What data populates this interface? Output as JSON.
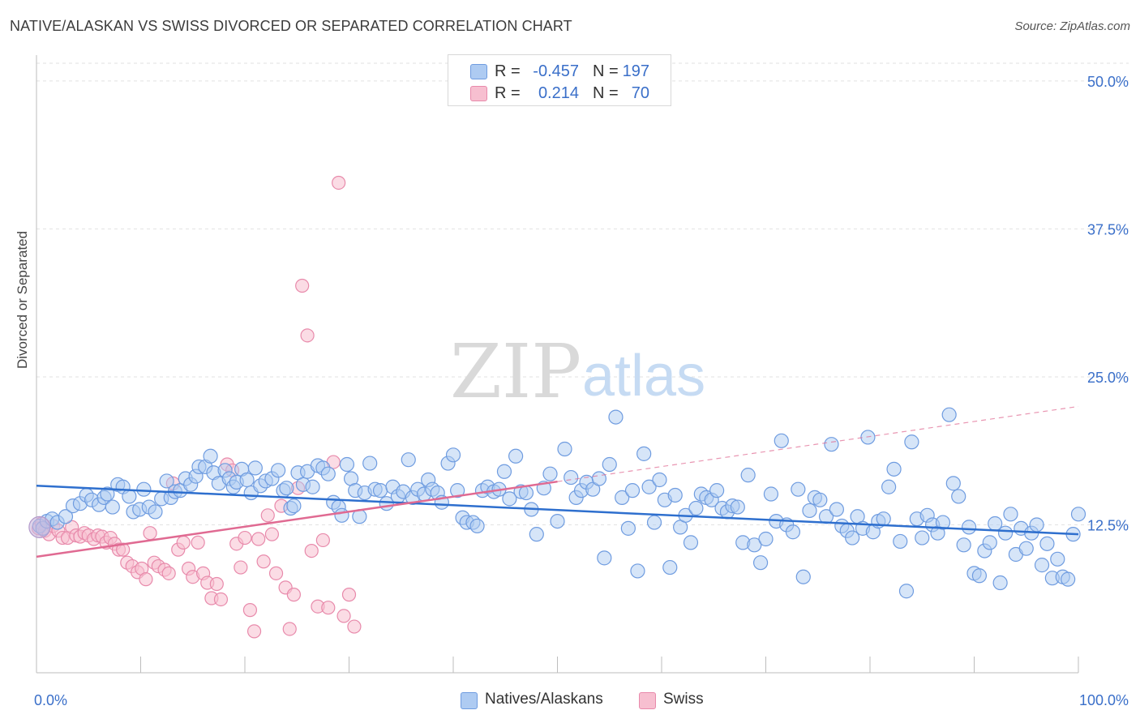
{
  "header": {
    "title": "NATIVE/ALASKAN VS SWISS DIVORCED OR SEPARATED CORRELATION CHART",
    "source": "Source: ZipAtlas.com"
  },
  "legend": {
    "rows": [
      {
        "r_label": "R =",
        "r_value": "-0.457",
        "n_label": "N =",
        "n_value": "197"
      },
      {
        "r_label": "R =",
        "r_value": "0.214",
        "n_label": "N =",
        "n_value": "70"
      }
    ]
  },
  "bottom_legend": [
    "Natives/Alaskans",
    "Swiss"
  ],
  "watermark": {
    "zip": "ZIP",
    "atlas": "atlas"
  },
  "colors": {
    "blue_fill": "#aecbf2",
    "blue_stroke": "#6f9ce0",
    "blue_line": "#2e6fce",
    "pink_fill": "#f7bfd0",
    "pink_stroke": "#e88aab",
    "pink_line": "#e06a92",
    "axis_text": "#3a6fc9",
    "grid": "#e2e2e2"
  },
  "chart_data": {
    "type": "scatter",
    "title": "NATIVE/ALASKAN VS SWISS DIVORCED OR SEPARATED CORRELATION CHART",
    "xlabel": "",
    "ylabel": "Divorced or Separated",
    "x_tick_labels": [
      "0.0%",
      "100.0%"
    ],
    "y_tick_labels": [
      "12.5%",
      "25.0%",
      "37.5%",
      "50.0%"
    ],
    "y_ticks": [
      12.5,
      25.0,
      37.5,
      50.0
    ],
    "xlim": [
      0,
      100
    ],
    "ylim": [
      0,
      51.5
    ],
    "grid": true,
    "legend_position": "top-center",
    "series": [
      {
        "name": "Natives/Alaskans",
        "r": -0.457,
        "n": 197,
        "trend": {
          "x": [
            0,
            100
          ],
          "y": [
            15.8,
            11.7
          ],
          "dashed_after": null
        },
        "points": [
          [
            0.3,
            12.4
          ],
          [
            0.6,
            12.2
          ],
          [
            1.0,
            12.8
          ],
          [
            1.5,
            13.0
          ],
          [
            2.0,
            12.7
          ],
          [
            2.8,
            13.2
          ],
          [
            3.5,
            14.1
          ],
          [
            4.2,
            14.3
          ],
          [
            4.8,
            15.0
          ],
          [
            5.3,
            14.6
          ],
          [
            6.0,
            14.2
          ],
          [
            6.5,
            14.8
          ],
          [
            6.8,
            15.1
          ],
          [
            7.3,
            14.0
          ],
          [
            7.8,
            15.9
          ],
          [
            8.3,
            15.7
          ],
          [
            8.9,
            14.9
          ],
          [
            9.3,
            13.6
          ],
          [
            9.9,
            13.8
          ],
          [
            10.3,
            15.5
          ],
          [
            10.8,
            14.0
          ],
          [
            11.4,
            13.6
          ],
          [
            12.0,
            14.7
          ],
          [
            12.5,
            16.2
          ],
          [
            12.9,
            14.8
          ],
          [
            13.3,
            15.3
          ],
          [
            13.8,
            15.4
          ],
          [
            14.3,
            16.4
          ],
          [
            14.8,
            15.9
          ],
          [
            15.3,
            16.6
          ],
          [
            15.6,
            17.4
          ],
          [
            16.2,
            17.4
          ],
          [
            16.7,
            18.3
          ],
          [
            17.0,
            16.9
          ],
          [
            17.5,
            16.0
          ],
          [
            18.1,
            17.1
          ],
          [
            18.5,
            16.4
          ],
          [
            18.9,
            15.7
          ],
          [
            19.2,
            16.1
          ],
          [
            19.7,
            17.2
          ],
          [
            20.2,
            16.3
          ],
          [
            20.6,
            15.2
          ],
          [
            21.0,
            17.3
          ],
          [
            21.5,
            15.8
          ],
          [
            22.0,
            16.2
          ],
          [
            22.6,
            16.4
          ],
          [
            23.2,
            17.1
          ],
          [
            23.7,
            15.4
          ],
          [
            24.0,
            15.6
          ],
          [
            24.4,
            13.9
          ],
          [
            24.7,
            14.1
          ],
          [
            25.1,
            16.9
          ],
          [
            25.6,
            15.9
          ],
          [
            26.0,
            17.0
          ],
          [
            26.5,
            15.7
          ],
          [
            27.0,
            17.5
          ],
          [
            27.5,
            17.3
          ],
          [
            28.0,
            16.8
          ],
          [
            28.5,
            14.4
          ],
          [
            29.0,
            14.0
          ],
          [
            29.3,
            13.3
          ],
          [
            29.8,
            17.6
          ],
          [
            30.2,
            16.4
          ],
          [
            30.6,
            15.4
          ],
          [
            31.0,
            13.2
          ],
          [
            31.5,
            15.2
          ],
          [
            32.0,
            17.7
          ],
          [
            32.5,
            15.5
          ],
          [
            33.0,
            15.4
          ],
          [
            33.6,
            14.3
          ],
          [
            34.2,
            15.7
          ],
          [
            34.7,
            14.9
          ],
          [
            35.2,
            15.3
          ],
          [
            35.7,
            18.0
          ],
          [
            36.1,
            14.8
          ],
          [
            36.6,
            15.5
          ],
          [
            37.2,
            15.1
          ],
          [
            37.6,
            16.3
          ],
          [
            38.0,
            15.5
          ],
          [
            38.5,
            15.2
          ],
          [
            38.9,
            14.4
          ],
          [
            39.5,
            17.7
          ],
          [
            40.0,
            18.4
          ],
          [
            40.4,
            15.4
          ],
          [
            40.9,
            13.1
          ],
          [
            41.3,
            12.7
          ],
          [
            41.9,
            12.7
          ],
          [
            42.3,
            12.4
          ],
          [
            42.8,
            15.4
          ],
          [
            43.3,
            15.7
          ],
          [
            43.9,
            15.3
          ],
          [
            44.4,
            15.5
          ],
          [
            44.9,
            17.0
          ],
          [
            45.4,
            14.7
          ],
          [
            46.0,
            18.3
          ],
          [
            46.5,
            15.3
          ],
          [
            47.0,
            15.2
          ],
          [
            47.5,
            13.8
          ],
          [
            48.0,
            11.7
          ],
          [
            48.7,
            15.6
          ],
          [
            49.3,
            16.8
          ],
          [
            50.0,
            12.8
          ],
          [
            50.7,
            18.9
          ],
          [
            51.3,
            16.5
          ],
          [
            51.8,
            14.8
          ],
          [
            52.3,
            15.4
          ],
          [
            52.8,
            16.1
          ],
          [
            53.4,
            15.5
          ],
          [
            54.0,
            16.4
          ],
          [
            54.5,
            9.7
          ],
          [
            55.0,
            17.6
          ],
          [
            55.6,
            21.6
          ],
          [
            56.2,
            14.8
          ],
          [
            56.8,
            12.2
          ],
          [
            57.2,
            15.4
          ],
          [
            57.7,
            8.6
          ],
          [
            58.3,
            18.5
          ],
          [
            58.8,
            15.7
          ],
          [
            59.3,
            12.7
          ],
          [
            59.8,
            16.3
          ],
          [
            60.3,
            14.6
          ],
          [
            60.8,
            8.9
          ],
          [
            61.3,
            15.0
          ],
          [
            61.8,
            12.3
          ],
          [
            62.3,
            13.3
          ],
          [
            62.8,
            11.0
          ],
          [
            63.3,
            13.9
          ],
          [
            63.8,
            15.1
          ],
          [
            64.3,
            14.8
          ],
          [
            64.8,
            14.6
          ],
          [
            65.3,
            15.4
          ],
          [
            65.8,
            13.9
          ],
          [
            66.3,
            13.6
          ],
          [
            66.8,
            14.1
          ],
          [
            67.3,
            14.0
          ],
          [
            67.8,
            11.0
          ],
          [
            68.3,
            16.7
          ],
          [
            68.9,
            10.8
          ],
          [
            69.5,
            9.3
          ],
          [
            70.0,
            11.3
          ],
          [
            70.5,
            15.1
          ],
          [
            71.0,
            12.8
          ],
          [
            71.5,
            19.6
          ],
          [
            72.0,
            12.5
          ],
          [
            72.6,
            11.9
          ],
          [
            73.1,
            15.5
          ],
          [
            73.6,
            8.1
          ],
          [
            74.2,
            13.7
          ],
          [
            74.7,
            14.8
          ],
          [
            75.2,
            14.6
          ],
          [
            75.8,
            13.2
          ],
          [
            76.3,
            19.3
          ],
          [
            76.8,
            13.8
          ],
          [
            77.3,
            12.4
          ],
          [
            77.8,
            12.0
          ],
          [
            78.3,
            11.4
          ],
          [
            78.8,
            13.2
          ],
          [
            79.3,
            12.2
          ],
          [
            79.8,
            19.9
          ],
          [
            80.3,
            11.9
          ],
          [
            80.8,
            12.8
          ],
          [
            81.3,
            13.0
          ],
          [
            81.8,
            15.7
          ],
          [
            82.3,
            17.2
          ],
          [
            82.9,
            11.1
          ],
          [
            83.5,
            6.9
          ],
          [
            84.0,
            19.5
          ],
          [
            84.5,
            13.0
          ],
          [
            85.0,
            11.4
          ],
          [
            85.5,
            13.3
          ],
          [
            86.0,
            12.5
          ],
          [
            86.5,
            11.8
          ],
          [
            87.0,
            12.7
          ],
          [
            87.6,
            21.8
          ],
          [
            88.0,
            16.0
          ],
          [
            88.5,
            14.9
          ],
          [
            89.0,
            10.8
          ],
          [
            89.5,
            12.3
          ],
          [
            90.0,
            8.4
          ],
          [
            90.5,
            8.2
          ],
          [
            91.0,
            10.3
          ],
          [
            91.5,
            11.0
          ],
          [
            92.0,
            12.6
          ],
          [
            92.5,
            7.6
          ],
          [
            93.0,
            11.8
          ],
          [
            93.5,
            13.4
          ],
          [
            94.0,
            10.0
          ],
          [
            94.5,
            12.2
          ],
          [
            95.0,
            10.5
          ],
          [
            95.5,
            11.8
          ],
          [
            96.0,
            12.5
          ],
          [
            96.5,
            9.1
          ],
          [
            97.0,
            10.9
          ],
          [
            97.5,
            8.0
          ],
          [
            98.0,
            9.6
          ],
          [
            98.5,
            8.1
          ],
          [
            99.0,
            7.9
          ],
          [
            99.5,
            11.7
          ],
          [
            100.0,
            13.4
          ]
        ]
      },
      {
        "name": "Swiss",
        "r": 0.214,
        "n": 70,
        "trend": {
          "x": [
            0,
            100
          ],
          "y": [
            9.8,
            22.5
          ],
          "solid_until": 50
        },
        "points": [
          [
            0.2,
            12.2
          ],
          [
            0.5,
            12.6
          ],
          [
            0.8,
            12.0
          ],
          [
            1.2,
            11.7
          ],
          [
            1.6,
            12.4
          ],
          [
            2.1,
            12.0
          ],
          [
            2.5,
            11.4
          ],
          [
            3.0,
            11.4
          ],
          [
            3.4,
            12.3
          ],
          [
            3.8,
            11.6
          ],
          [
            4.2,
            11.5
          ],
          [
            4.6,
            11.8
          ],
          [
            5.0,
            11.6
          ],
          [
            5.5,
            11.3
          ],
          [
            5.9,
            11.6
          ],
          [
            6.3,
            11.5
          ],
          [
            6.7,
            11.0
          ],
          [
            7.1,
            11.4
          ],
          [
            7.5,
            10.9
          ],
          [
            7.9,
            10.4
          ],
          [
            8.3,
            10.4
          ],
          [
            8.7,
            9.3
          ],
          [
            9.2,
            9.0
          ],
          [
            9.7,
            8.5
          ],
          [
            10.1,
            8.8
          ],
          [
            10.5,
            7.9
          ],
          [
            10.9,
            11.8
          ],
          [
            11.3,
            9.3
          ],
          [
            11.7,
            9.0
          ],
          [
            12.3,
            8.7
          ],
          [
            12.7,
            8.4
          ],
          [
            13.1,
            16.0
          ],
          [
            13.6,
            10.4
          ],
          [
            14.1,
            11.0
          ],
          [
            14.6,
            8.8
          ],
          [
            15.0,
            8.1
          ],
          [
            15.5,
            11.0
          ],
          [
            16.0,
            8.4
          ],
          [
            16.4,
            7.6
          ],
          [
            16.8,
            6.3
          ],
          [
            17.3,
            7.5
          ],
          [
            17.7,
            6.2
          ],
          [
            18.3,
            17.6
          ],
          [
            18.8,
            17.1
          ],
          [
            19.2,
            10.9
          ],
          [
            19.6,
            8.9
          ],
          [
            20.0,
            11.4
          ],
          [
            20.5,
            5.3
          ],
          [
            20.9,
            3.5
          ],
          [
            21.3,
            11.3
          ],
          [
            21.8,
            9.4
          ],
          [
            22.2,
            13.3
          ],
          [
            22.6,
            11.7
          ],
          [
            23.0,
            8.4
          ],
          [
            23.5,
            14.1
          ],
          [
            23.9,
            7.2
          ],
          [
            24.3,
            3.7
          ],
          [
            24.7,
            6.6
          ],
          [
            25.1,
            15.6
          ],
          [
            25.5,
            32.7
          ],
          [
            26.0,
            28.5
          ],
          [
            26.4,
            10.3
          ],
          [
            27.0,
            5.6
          ],
          [
            27.5,
            11.2
          ],
          [
            28.0,
            5.5
          ],
          [
            28.5,
            17.8
          ],
          [
            29.0,
            41.4
          ],
          [
            29.5,
            4.8
          ],
          [
            30.0,
            6.6
          ],
          [
            30.5,
            3.9
          ]
        ]
      }
    ]
  }
}
